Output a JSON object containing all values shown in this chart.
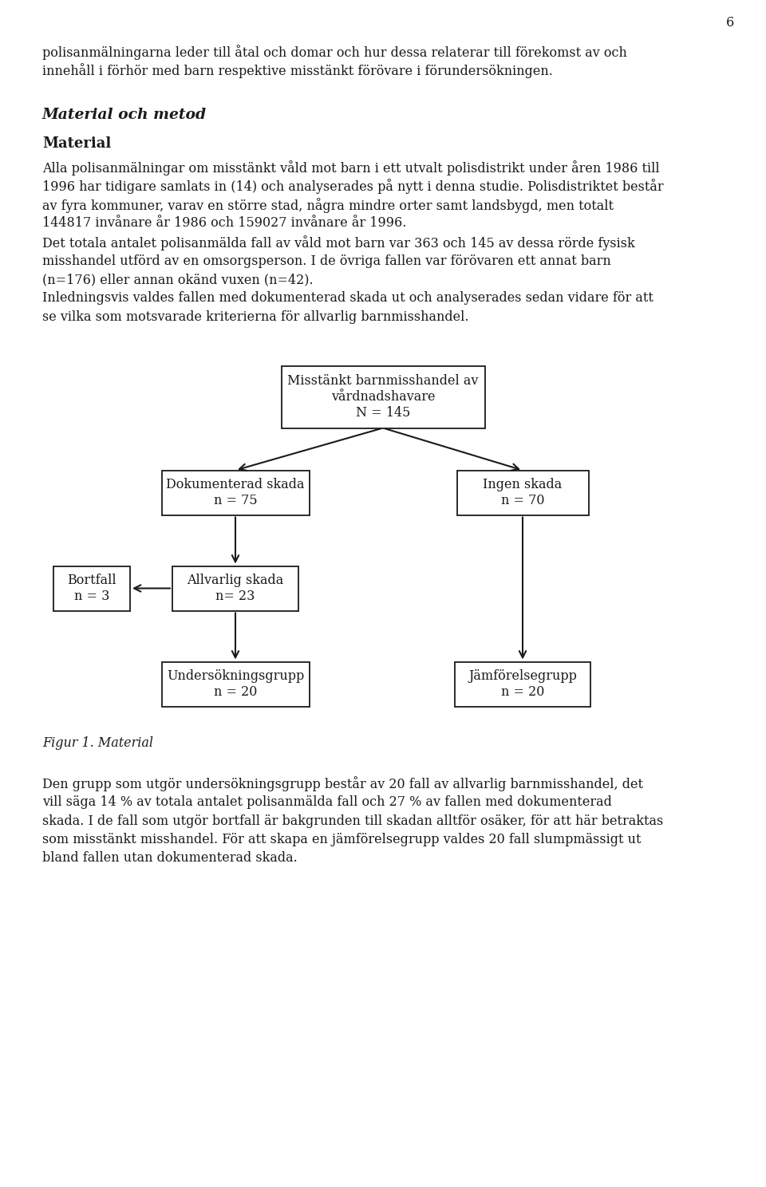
{
  "page_number": "6",
  "background_color": "#ffffff",
  "text_color": "#1a1a1a",
  "para1_line1": "polisanmälningarna leder till åtal och domar och hur dessa relaterar till förekomst av och",
  "para1_line2": "innehåll i förhör med barn respektive misstänkt förövare i förundersökningen.",
  "heading1": "Material och metod",
  "heading2": "Material",
  "para2_line1": "Alla polisanmälningar om misstänkt våld mot barn i ett utvalt polisdistrikt under åren 1986 till",
  "para2_line2": "1996 har tidigare samlats in (14) och analyserades på nytt i denna studie. Polisdistriktet består",
  "para2_line3": "av fyra kommuner, varav en större stad, några mindre orter samt landsbygd, men totalt",
  "para2_line4": "144817 invånare år 1986 och 159027 invånare år 1996.",
  "para3_line1": "Det totala antalet polisanmälda fall av våld mot barn var 363 och 145 av dessa rörde fysisk",
  "para3_line2": "misshandel utförd av en omsorgsperson. I de övriga fallen var förövaren ett annat barn",
  "para3_line3": "(n=176) eller annan okänd vuxen (n=42).",
  "para4_line1": "Inledningsvis valdes fallen med dokumenterad skada ut och analyserades sedan vidare för att",
  "para4_line2": "se vilka som motsvarade kriterierna för allvarlig barnmisshandel.",
  "box_top_text": "Misstänkt barnmisshandel av\nvårdnadshavare\nN = 145",
  "box_left_text": "Dokumenterad skada\nn = 75",
  "box_right_text": "Ingen skada\nn = 70",
  "box_bortfall_text": "Bortfall\nn = 3",
  "box_allvarlig_text": "Allvarlig skada\nn= 23",
  "box_undersokning_text": "Undersökningsgrupp\nn = 20",
  "box_jamforelse_text": "Jämförelsegrupp\nn = 20",
  "figur_caption": "Figur 1. Material",
  "para5_line1": "Den grupp som utgör undersökningsgrupp består av 20 fall av allvarlig barnmisshandel, det",
  "para5_line2": "vill säga 14 % av totala antalet polisanmälda fall och 27 % av fallen med dokumenterad",
  "para5_line3": "skada. I de fall som utgör bortfall är bakgrunden till skadan alltför osäker, för att här betraktas",
  "para5_line4": "som misstänkt misshandel. För att skapa en jämförelsegrupp valdes 20 fall slumpmässigt ut",
  "para5_line5": "bland fallen utan dokumenterad skada."
}
